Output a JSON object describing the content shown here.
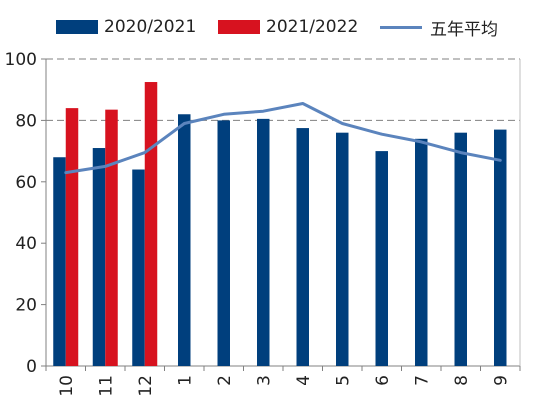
{
  "chart_data": {
    "type": "bar",
    "categories": [
      "10",
      "11",
      "12",
      "1",
      "2",
      "3",
      "4",
      "5",
      "6",
      "7",
      "8",
      "9"
    ],
    "series": [
      {
        "name": "2020/2021",
        "kind": "bar",
        "color": "#003f7d",
        "values": [
          68,
          71,
          64,
          82,
          80,
          80.5,
          77.5,
          76,
          70,
          74,
          76,
          77
        ]
      },
      {
        "name": "2021/2022",
        "kind": "bar",
        "color": "#d7121f",
        "values": [
          84,
          83.5,
          92.5,
          null,
          null,
          null,
          null,
          null,
          null,
          null,
          null,
          null
        ]
      },
      {
        "name": "五年平均",
        "kind": "line",
        "color": "#5b84bd",
        "values": [
          63,
          65,
          69.5,
          79,
          82,
          83,
          85.5,
          79,
          75.5,
          73,
          69.5,
          67
        ]
      }
    ],
    "ylim": [
      0,
      100
    ],
    "yticks": [
      0,
      20,
      40,
      60,
      80,
      100
    ],
    "gridlines": [
      80,
      100
    ],
    "legend_position": "top"
  }
}
